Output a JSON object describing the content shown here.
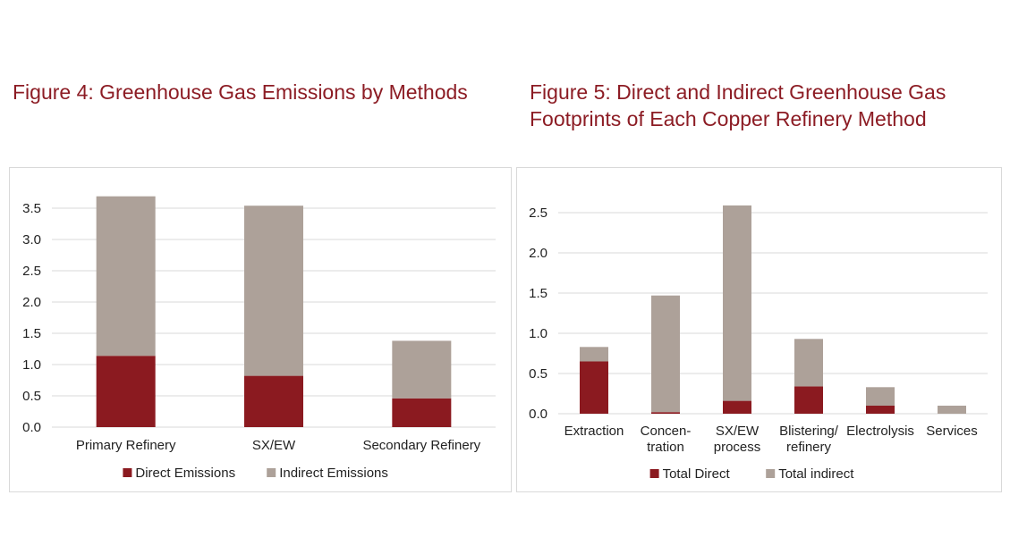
{
  "figures": [
    {
      "title": "Figure 4: Greenhouse Gas Emissions by Methods"
    },
    {
      "title": "Figure 5: Direct and Indirect Greenhouse Gas Footprints of Each Copper Refinery Method"
    }
  ],
  "colors": {
    "direct": "#8b1a20",
    "indirect": "#ada199",
    "grid": "#d9d9d9",
    "title": "#8c1c24"
  },
  "chart_data": [
    {
      "type": "bar",
      "stacked": true,
      "categories": [
        "Primary Refinery",
        "SX/EW",
        "Secondary Refinery"
      ],
      "series": [
        {
          "name": "Direct Emissions",
          "values": [
            1.14,
            0.82,
            0.46
          ]
        },
        {
          "name": "Indirect Emissions",
          "values": [
            2.55,
            2.72,
            0.92
          ]
        }
      ],
      "ylim": [
        0,
        3.5
      ],
      "yticks": [
        "0.0",
        "0.5",
        "1.0",
        "1.5",
        "2.0",
        "2.5",
        "3.0",
        "3.5"
      ],
      "grid": true,
      "legend": "bottom"
    },
    {
      "type": "bar",
      "stacked": true,
      "categories": [
        "Extraction",
        "Concen-\ntration",
        "SX/EW\nprocess",
        "Blistering/\nrefinery",
        "Electrolysis",
        "Services"
      ],
      "series": [
        {
          "name": "Total Direct",
          "values": [
            0.65,
            0.02,
            0.16,
            0.34,
            0.1,
            0.0
          ]
        },
        {
          "name": "Total indirect",
          "values": [
            0.18,
            1.45,
            2.43,
            0.59,
            0.23,
            0.1
          ]
        }
      ],
      "ylim": [
        0,
        2.5
      ],
      "yticks": [
        "0.0",
        "0.5",
        "1.0",
        "1.5",
        "2.0",
        "2.5"
      ],
      "grid": true,
      "legend": "bottom"
    }
  ]
}
